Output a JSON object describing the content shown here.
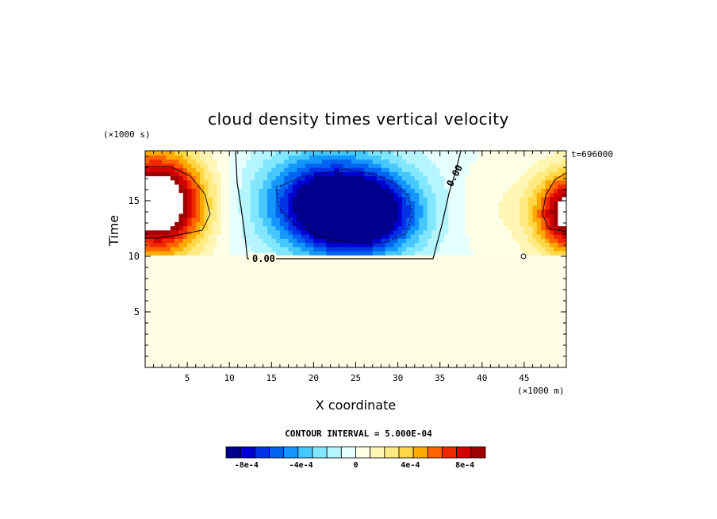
{
  "chart_data": {
    "type": "heatmap",
    "title": "cloud density times vertical velocity",
    "xlabel": "X coordinate",
    "ylabel": "Time",
    "x_unit": "(×1000 m)",
    "y_unit": "(×1000 s)",
    "time_stamp": "t=696000",
    "xlim": [
      0,
      50
    ],
    "ylim": [
      0,
      19.5
    ],
    "x_ticks": [
      "5",
      "10",
      "15",
      "20",
      "25",
      "30",
      "35",
      "40",
      "45"
    ],
    "y_ticks": [
      "5",
      "10",
      "15"
    ],
    "contour_interval": "CONTOUR INTERVAL = 5.000E-04",
    "contour_labels": [
      "0.00",
      "0.00"
    ],
    "colorbar": {
      "colors": [
        "#00008c",
        "#0000d2",
        "#0032e6",
        "#0064f0",
        "#1496ff",
        "#46c8ff",
        "#82e6ff",
        "#b4f5ff",
        "#e6ffff",
        "#ffffe6",
        "#fff5b4",
        "#ffeb82",
        "#ffd746",
        "#ffaa00",
        "#ff6400",
        "#f02800",
        "#d20000",
        "#a00000"
      ],
      "tick_labels": [
        "-8e-4",
        "-4e-4",
        "0",
        "4e-4",
        "8e-4"
      ],
      "tick_values": [
        -0.0008,
        -0.0004,
        0,
        0.0004,
        0.0008
      ],
      "range": [
        -0.00095,
        0.00095
      ]
    },
    "features": [
      {
        "name": "positive maximum",
        "x": 2,
        "y": 14.5,
        "value_sign": "positive"
      },
      {
        "name": "negative core",
        "x": 25,
        "y": 14,
        "value_sign": "negative"
      },
      {
        "name": "positive maximum",
        "x": 49,
        "y": 13.8,
        "value_sign": "positive"
      }
    ]
  }
}
